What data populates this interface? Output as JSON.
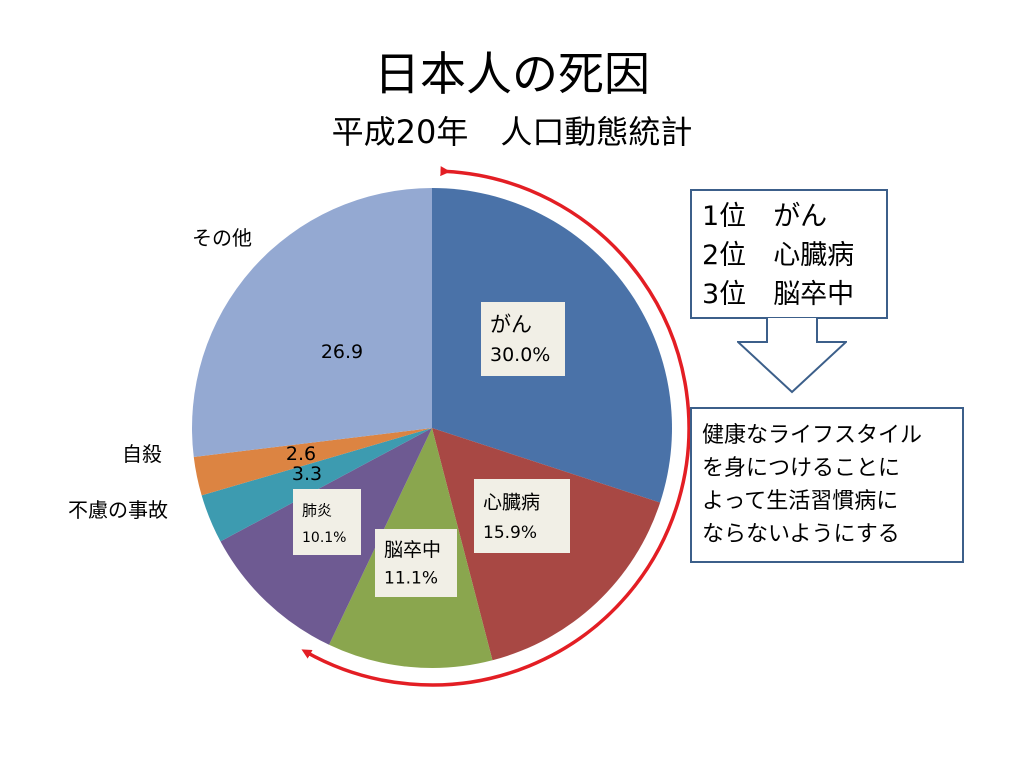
{
  "title": "日本人の死因",
  "subtitle": "平成20年　人口動態統計",
  "chart_data": {
    "type": "pie",
    "start": "12 o'clock",
    "direction": "clockwise",
    "slices": [
      {
        "label": "がん",
        "value": 30.0,
        "value_text": "30.0%",
        "color": "#4a72a8",
        "label_style": "box"
      },
      {
        "label": "心臓病",
        "value": 15.9,
        "value_text": "15.9%",
        "color": "#a84844",
        "label_style": "box"
      },
      {
        "label": "脳卒中",
        "value": 11.1,
        "value_text": "11.1%",
        "color": "#8aa64e",
        "label_style": "box"
      },
      {
        "label": "肺炎",
        "value": 10.1,
        "value_text": "10.1%",
        "color": "#6e5a92",
        "label_style": "box"
      },
      {
        "label": "不慮の事故",
        "value": 3.3,
        "value_text": "3.3",
        "color": "#3d9bb0",
        "label_style": "outside"
      },
      {
        "label": "自殺",
        "value": 2.6,
        "value_text": "2.6",
        "color": "#dc8442",
        "label_style": "outside"
      },
      {
        "label": "その他",
        "value": 26.9,
        "value_text": "26.9",
        "color": "#94a9d2",
        "label_style": "outside"
      }
    ],
    "annotation": "clockwise red arrow around the top three causes",
    "annotation_color": "#e31e24"
  },
  "ranking": [
    {
      "rank": "1位",
      "cause": "がん"
    },
    {
      "rank": "2位",
      "cause": "心臓病"
    },
    {
      "rank": "3位",
      "cause": "脳卒中"
    }
  ],
  "advice_lines": [
    "健康なライフスタイル",
    "を身につけることに",
    "よって生活習慣病に",
    "ならないようにする"
  ]
}
